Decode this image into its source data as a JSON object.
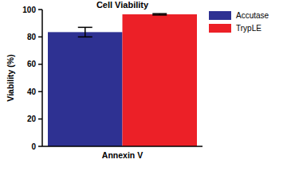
{
  "chart_data": {
    "type": "bar",
    "title": "Cell Viability",
    "y_label": "Viability (%)",
    "categories": [
      "Annexin V"
    ],
    "series": [
      {
        "name": "Accutase",
        "color": "#2e3192",
        "values": [
          83.5
        ],
        "errors": [
          3.5
        ]
      },
      {
        "name": "TrypLE",
        "color": "#ec2027",
        "values": [
          96.5
        ],
        "errors": [
          0.5
        ]
      }
    ],
    "ylim": [
      0,
      100
    ],
    "yticks": [
      0,
      20,
      40,
      60,
      80,
      100
    ],
    "grid": false,
    "legend": "right"
  }
}
